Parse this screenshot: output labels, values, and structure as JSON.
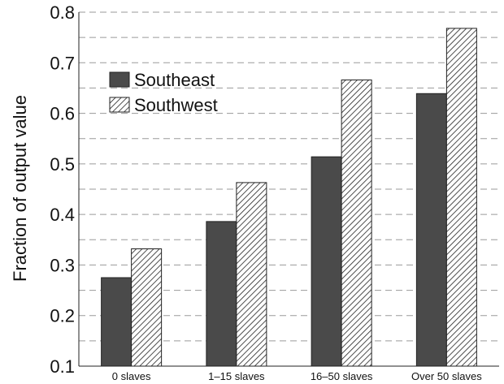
{
  "chart_data": {
    "type": "bar",
    "title": "",
    "xlabel": "",
    "ylabel": "Fraction of output value",
    "categories": [
      "0 slaves",
      "1–15 slaves",
      "16–50 slaves",
      "Over 50 slaves"
    ],
    "series": [
      {
        "name": "Southeast",
        "values": [
          0.275,
          0.386,
          0.514,
          0.639
        ],
        "color": "#4a4a4a",
        "pattern": "solid"
      },
      {
        "name": "Southwest",
        "values": [
          0.332,
          0.463,
          0.666,
          0.768
        ],
        "color": "#ffffff",
        "pattern": "diagonal-hatch"
      }
    ],
    "ylim": [
      0.1,
      0.8
    ],
    "yticks": [
      "0.1",
      "0.2",
      "0.3",
      "0.4",
      "0.5",
      "0.6",
      "0.7",
      "0.8"
    ],
    "grid": "dashed horizontal lines every 0.05",
    "legend": "upper-left"
  }
}
